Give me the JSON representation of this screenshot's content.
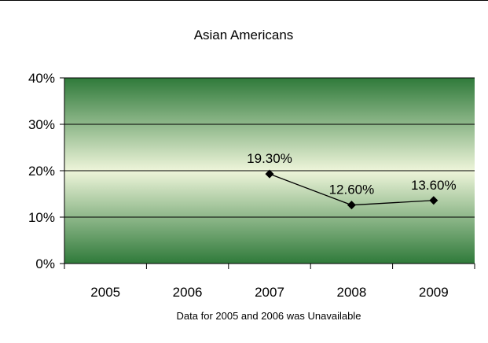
{
  "chart_data": {
    "type": "line",
    "title": "Asian Americans",
    "note": "Data for 2005 and 2006 was Unavailable",
    "categories": [
      "2005",
      "2006",
      "2007",
      "2008",
      "2009"
    ],
    "series": [
      {
        "values": [
          null,
          null,
          19.3,
          12.6,
          13.6
        ],
        "labels": [
          "",
          "",
          "19.30%",
          "12.60%",
          "13.60%"
        ],
        "color": "#000000",
        "marker": "diamond"
      }
    ],
    "y_ticks": [
      "0%",
      "10%",
      "20%",
      "30%",
      "40%"
    ],
    "ylim": [
      0,
      40
    ],
    "grid": true,
    "legend": "none",
    "plot_background": {
      "edge": "#2f7a3a",
      "center": "#eef5da"
    }
  }
}
